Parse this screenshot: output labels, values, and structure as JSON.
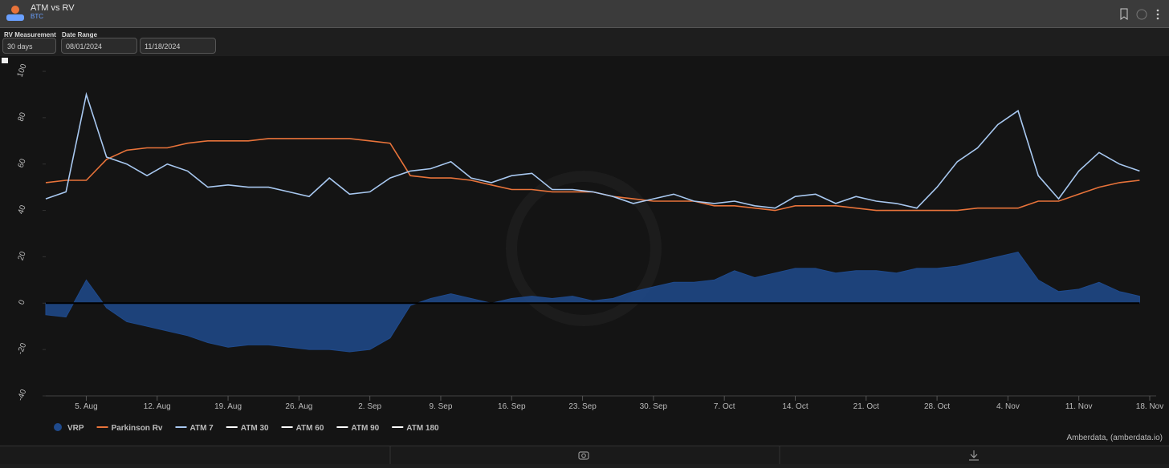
{
  "header": {
    "title": "ATM vs RV",
    "subtitle": "BTC"
  },
  "controls": {
    "rv_label": "RV Measurement",
    "rv_value": "30 days",
    "date_label": "Date Range",
    "date_from": "08/01/2024",
    "date_to": "11/18/2024"
  },
  "credit": "Amberdata, (amberdata.io)",
  "chart_data": {
    "type": "line",
    "x": [
      "2024-08-01",
      "2024-08-03",
      "2024-08-05",
      "2024-08-07",
      "2024-08-09",
      "2024-08-11",
      "2024-08-13",
      "2024-08-15",
      "2024-08-17",
      "2024-08-19",
      "2024-08-21",
      "2024-08-23",
      "2024-08-25",
      "2024-08-27",
      "2024-08-29",
      "2024-08-31",
      "2024-09-02",
      "2024-09-04",
      "2024-09-06",
      "2024-09-08",
      "2024-09-10",
      "2024-09-12",
      "2024-09-14",
      "2024-09-16",
      "2024-09-18",
      "2024-09-20",
      "2024-09-22",
      "2024-09-24",
      "2024-09-26",
      "2024-09-28",
      "2024-09-30",
      "2024-10-02",
      "2024-10-04",
      "2024-10-06",
      "2024-10-08",
      "2024-10-10",
      "2024-10-12",
      "2024-10-14",
      "2024-10-16",
      "2024-10-18",
      "2024-10-20",
      "2024-10-22",
      "2024-10-24",
      "2024-10-26",
      "2024-10-28",
      "2024-10-30",
      "2024-11-01",
      "2024-11-03",
      "2024-11-05",
      "2024-11-07",
      "2024-11-09",
      "2024-11-11",
      "2024-11-13",
      "2024-11-15",
      "2024-11-17"
    ],
    "series": [
      {
        "name": "VRP",
        "color": "#1f4a8c",
        "kind": "area",
        "values": [
          -5,
          -6,
          10,
          -2,
          -8,
          -10,
          -12,
          -14,
          -17,
          -19,
          -18,
          -18,
          -19,
          -20,
          -20,
          -21,
          -20,
          -15,
          -1,
          2,
          4,
          2,
          0,
          2,
          3,
          2,
          3,
          1,
          2,
          5,
          7,
          9,
          9,
          10,
          14,
          11,
          13,
          15,
          15,
          13,
          14,
          14,
          13,
          15,
          15,
          16,
          18,
          20,
          22,
          10,
          5,
          6,
          9,
          5,
          3
        ]
      },
      {
        "name": "Parkinson Rv",
        "color": "#e8733a",
        "kind": "line",
        "values": [
          52,
          53,
          53,
          62,
          66,
          67,
          67,
          69,
          70,
          70,
          70,
          71,
          71,
          71,
          71,
          71,
          70,
          69,
          55,
          54,
          54,
          53,
          51,
          49,
          49,
          48,
          48,
          48,
          46,
          45,
          44,
          44,
          44,
          42,
          42,
          41,
          40,
          42,
          42,
          42,
          41,
          40,
          40,
          40,
          40,
          40,
          41,
          41,
          41,
          44,
          44,
          47,
          50,
          52,
          53
        ]
      },
      {
        "name": "ATM 7",
        "color": "#a8c8f0",
        "kind": "line",
        "values": [
          45,
          48,
          90,
          63,
          60,
          55,
          60,
          57,
          50,
          51,
          50,
          50,
          48,
          46,
          54,
          47,
          48,
          54,
          57,
          58,
          61,
          54,
          52,
          55,
          56,
          49,
          49,
          48,
          46,
          43,
          45,
          47,
          44,
          43,
          44,
          42,
          41,
          46,
          47,
          43,
          46,
          44,
          43,
          41,
          50,
          61,
          67,
          77,
          83,
          55,
          45,
          57,
          65,
          60,
          57
        ]
      }
    ],
    "legend_inactive": [
      "ATM 30",
      "ATM 60",
      "ATM 90",
      "ATM 180"
    ],
    "xlim": [
      "2024-08-01",
      "2024-11-18"
    ],
    "xticks": [
      {
        "value": "2024-08-05",
        "label": "5. Aug"
      },
      {
        "value": "2024-08-12",
        "label": "12. Aug"
      },
      {
        "value": "2024-08-19",
        "label": "19. Aug"
      },
      {
        "value": "2024-08-26",
        "label": "26. Aug"
      },
      {
        "value": "2024-09-02",
        "label": "2. Sep"
      },
      {
        "value": "2024-09-09",
        "label": "9. Sep"
      },
      {
        "value": "2024-09-16",
        "label": "16. Sep"
      },
      {
        "value": "2024-09-23",
        "label": "23. Sep"
      },
      {
        "value": "2024-09-30",
        "label": "30. Sep"
      },
      {
        "value": "2024-10-07",
        "label": "7. Oct"
      },
      {
        "value": "2024-10-14",
        "label": "14. Oct"
      },
      {
        "value": "2024-10-21",
        "label": "21. Oct"
      },
      {
        "value": "2024-10-28",
        "label": "28. Oct"
      },
      {
        "value": "2024-11-04",
        "label": "4. Nov"
      },
      {
        "value": "2024-11-11",
        "label": "11. Nov"
      },
      {
        "value": "2024-11-18",
        "label": "18. Nov"
      }
    ],
    "ylim": [
      -40,
      100
    ],
    "yticks": [
      -40,
      -20,
      0,
      20,
      40,
      60,
      80,
      100
    ],
    "legend": "bottom-left"
  }
}
